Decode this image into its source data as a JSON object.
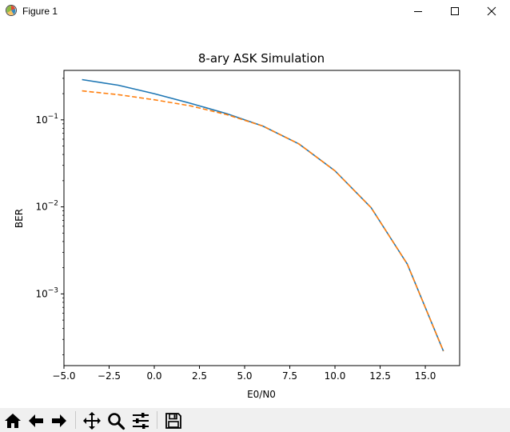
{
  "window": {
    "title": "Figure 1",
    "controls": [
      "minimize",
      "maximize",
      "close"
    ]
  },
  "toolbar": {
    "buttons": [
      {
        "name": "home-icon",
        "label": "Home"
      },
      {
        "name": "back-icon",
        "label": "Back"
      },
      {
        "name": "forward-icon",
        "label": "Forward"
      },
      {
        "name": "pan-icon",
        "label": "Pan"
      },
      {
        "name": "zoom-icon",
        "label": "Zoom"
      },
      {
        "name": "configure-subplots-icon",
        "label": "Configure subplots"
      },
      {
        "name": "save-icon",
        "label": "Save"
      }
    ],
    "coordinates": ""
  },
  "chart_data": {
    "type": "line",
    "title": "8-ary ASK Simulation",
    "xlabel": "E0/N0",
    "ylabel": "BER",
    "xlim": [
      -5.0,
      16.9
    ],
    "ylim": [
      0.00015,
      0.37
    ],
    "yscale": "log",
    "grid": false,
    "x_ticks": [
      "−5.0",
      "−2.5",
      "0.0",
      "2.5",
      "5.0",
      "7.5",
      "10.0",
      "12.5",
      "15.0"
    ],
    "x_tick_values": [
      -5.0,
      -2.5,
      0.0,
      2.5,
      5.0,
      7.5,
      10.0,
      12.5,
      15.0
    ],
    "y_ticks": [
      {
        "value": 0.1,
        "base": "10",
        "exp": "−1"
      },
      {
        "value": 0.01,
        "base": "10",
        "exp": "−2"
      },
      {
        "value": 0.001,
        "base": "10",
        "exp": "−3"
      }
    ],
    "colors": {
      "series1": "#1f77b4",
      "series2": "#ff7f0e"
    },
    "series": [
      {
        "style": "solid",
        "color": "#1f77b4",
        "x": [
          -4,
          -2,
          0,
          2,
          4,
          6,
          8,
          10,
          12,
          14,
          16
        ],
        "y": [
          0.29,
          0.25,
          0.2,
          0.155,
          0.118,
          0.085,
          0.053,
          0.026,
          0.0098,
          0.0022,
          0.00022
        ]
      },
      {
        "style": "dashed",
        "color": "#ff7f0e",
        "x": [
          -4,
          -2,
          0,
          2,
          4,
          6,
          8,
          10,
          12,
          14,
          16
        ],
        "y": [
          0.215,
          0.195,
          0.17,
          0.145,
          0.115,
          0.085,
          0.053,
          0.026,
          0.0098,
          0.0022,
          0.00022
        ]
      }
    ]
  }
}
